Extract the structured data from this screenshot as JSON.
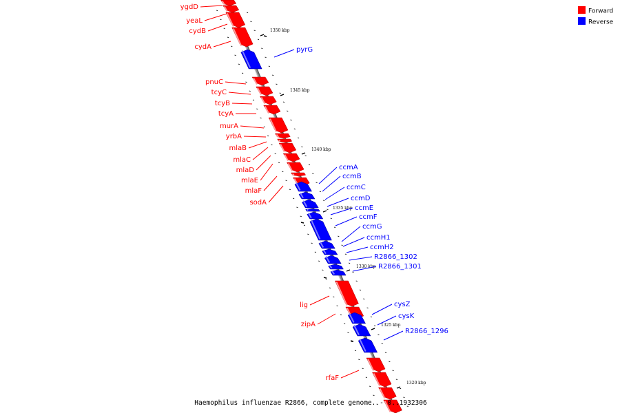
{
  "legend": [
    {
      "label": "Forward",
      "color": "#ff0000"
    },
    {
      "label": "Reverse",
      "color": "#0000ff"
    }
  ],
  "colors": {
    "forward": "#ff0000",
    "reverse": "#0000ff",
    "backbone": "#888888"
  },
  "caption": "Haemophilus influenzae R2866, complete genome. - 0..1932306",
  "ticks": [
    {
      "label": "1350 kbp",
      "kbp": 1350
    },
    {
      "label": "1345 kbp",
      "kbp": 1345
    },
    {
      "label": "1340 kbp",
      "kbp": 1340
    },
    {
      "label": "1335 kbp",
      "kbp": 1335
    },
    {
      "label": "1330 kbp",
      "kbp": 1330
    },
    {
      "label": "1325 kbp",
      "kbp": 1325
    },
    {
      "label": "1320 kbp",
      "kbp": 1320
    }
  ],
  "genes": [
    {
      "name": "ygdD",
      "strand": "forward"
    },
    {
      "name": "yeaL",
      "strand": "forward"
    },
    {
      "name": "cydB",
      "strand": "forward"
    },
    {
      "name": "cydA",
      "strand": "forward"
    },
    {
      "name": "pyrG",
      "strand": "reverse"
    },
    {
      "name": "pnuC",
      "strand": "forward"
    },
    {
      "name": "tcyC",
      "strand": "forward"
    },
    {
      "name": "tcyB",
      "strand": "forward"
    },
    {
      "name": "tcyA",
      "strand": "forward"
    },
    {
      "name": "murA",
      "strand": "forward"
    },
    {
      "name": "yrbA",
      "strand": "forward"
    },
    {
      "name": "mlaB",
      "strand": "forward"
    },
    {
      "name": "mlaC",
      "strand": "forward"
    },
    {
      "name": "mlaD",
      "strand": "forward"
    },
    {
      "name": "mlaE",
      "strand": "forward"
    },
    {
      "name": "mlaF",
      "strand": "forward"
    },
    {
      "name": "sodA",
      "strand": "forward"
    },
    {
      "name": "ccmA",
      "strand": "reverse"
    },
    {
      "name": "ccmB",
      "strand": "reverse"
    },
    {
      "name": "ccmC",
      "strand": "reverse"
    },
    {
      "name": "ccmD",
      "strand": "reverse"
    },
    {
      "name": "ccmE",
      "strand": "reverse"
    },
    {
      "name": "ccmF",
      "strand": "reverse"
    },
    {
      "name": "ccmG",
      "strand": "reverse"
    },
    {
      "name": "ccmH1",
      "strand": "reverse"
    },
    {
      "name": "ccmH2",
      "strand": "reverse"
    },
    {
      "name": "R2866_1302",
      "strand": "reverse"
    },
    {
      "name": "R2866_1301",
      "strand": "reverse"
    },
    {
      "name": "lig",
      "strand": "forward"
    },
    {
      "name": "zipA",
      "strand": "forward"
    },
    {
      "name": "cysZ",
      "strand": "reverse"
    },
    {
      "name": "cysK",
      "strand": "reverse"
    },
    {
      "name": "R2866_1296",
      "strand": "reverse"
    },
    {
      "name": "rfaF",
      "strand": "forward"
    }
  ]
}
